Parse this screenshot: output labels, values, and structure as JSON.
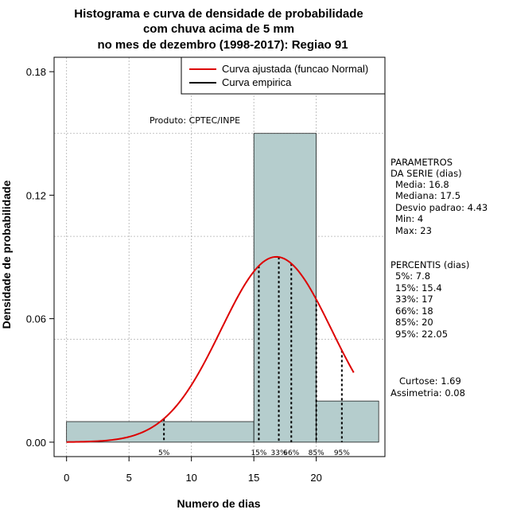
{
  "chart_data": {
    "type": "bar",
    "title_lines": [
      "Histograma e curva de densidade de probabilidade",
      "com chuva acima de 5 mm",
      "no mes de dezembro (1998-2017): Regiao 91"
    ],
    "xlabel": "Numero de dias",
    "ylabel": "Densidade de probabilidade",
    "xlim": [
      -1,
      25.5
    ],
    "ylim": [
      -0.007,
      0.187
    ],
    "xticks": [
      0,
      5,
      10,
      15,
      20
    ],
    "yticks": [
      0.0,
      0.06,
      0.12,
      0.18
    ],
    "xtick_labels": [
      "0",
      "5",
      "10",
      "15",
      "20"
    ],
    "ytick_labels": [
      "0.00",
      "0.06",
      "0.12",
      "0.18"
    ],
    "grid_x": [
      0,
      5,
      10,
      15,
      20
    ],
    "grid_y": [
      0.05,
      0.1,
      0.15
    ],
    "bins": [
      {
        "x0": 0,
        "x1": 15,
        "density": 0.01
      },
      {
        "x0": 15,
        "x1": 20,
        "density": 0.15
      },
      {
        "x0": 20,
        "x1": 25,
        "density": 0.02
      }
    ],
    "normal_curve": {
      "mean": 16.8,
      "sd": 4.43,
      "x_start": 0,
      "x_end": 23
    },
    "percentiles": [
      {
        "label": "5%",
        "x": 7.8
      },
      {
        "label": "15%",
        "x": 15.4
      },
      {
        "label": "33%",
        "x": 17
      },
      {
        "label": "66%",
        "x": 18
      },
      {
        "label": "85%",
        "x": 20
      },
      {
        "label": "95%",
        "x": 22.05
      }
    ],
    "legend": {
      "position": "top-right",
      "entries": [
        {
          "label": "Curva ajustada (funcao Normal)",
          "color": "#dd0000"
        },
        {
          "label": "Curva empirica",
          "color": "#000000"
        }
      ]
    },
    "annotation": "Produto: CPTEC/INPE",
    "colors": {
      "bar_fill": "#b5cdcd",
      "curve": "#dd0000",
      "grid": "#b0b0b0"
    }
  },
  "side_panel": {
    "params_title": [
      "PARAMETROS",
      "DA SERIE (dias)"
    ],
    "params": [
      "Media: 16.8",
      "Mediana: 17.5",
      "Desvio padrao: 4.43",
      "Min: 4",
      "Max: 23"
    ],
    "percentis_title": "PERCENTIS (dias)",
    "percentis": [
      "5%: 7.8",
      "15%: 15.4",
      "33%: 17",
      "66%: 18",
      "85%: 20",
      "95%: 22.05"
    ],
    "curtose": "Curtose: 1.69",
    "assimetria": "Assimetria: 0.08"
  }
}
